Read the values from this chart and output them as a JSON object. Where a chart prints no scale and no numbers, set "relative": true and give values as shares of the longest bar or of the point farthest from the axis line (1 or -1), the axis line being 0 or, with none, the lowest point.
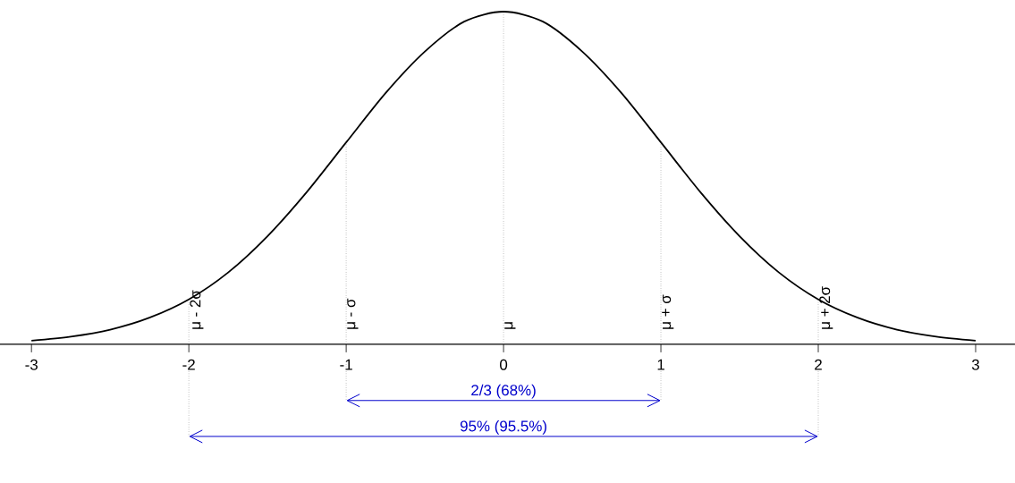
{
  "chart_data": {
    "type": "line",
    "relative": true,
    "color": "#000000",
    "x": [
      -3,
      -2.75,
      -2.5,
      -2.25,
      -2,
      -1.75,
      -1.5,
      -1.25,
      -1,
      -0.75,
      -0.5,
      -0.25,
      0,
      0.25,
      0.5,
      0.75,
      1,
      1.25,
      1.5,
      1.75,
      2,
      2.25,
      2.5,
      2.75,
      3
    ],
    "values": [
      0.011,
      0.023,
      0.044,
      0.08,
      0.135,
      0.216,
      0.325,
      0.458,
      0.607,
      0.755,
      0.88,
      0.97,
      1,
      0.97,
      0.88,
      0.755,
      0.607,
      0.458,
      0.325,
      0.216,
      0.135,
      0.08,
      0.044,
      0.023,
      0.011
    ],
    "xlim": [
      -3.2,
      3.25
    ],
    "xticks": [
      -3,
      -2,
      -1,
      0,
      1,
      2,
      3
    ],
    "ref_lines": [
      {
        "axis": "x",
        "value": -2,
        "label": "μ - 2σ",
        "line_style": "dotted"
      },
      {
        "axis": "x",
        "value": -1,
        "label": "μ - σ",
        "line_style": "dotted"
      },
      {
        "axis": "x",
        "value": 0,
        "label": "μ",
        "line_style": "dotted"
      },
      {
        "axis": "x",
        "value": 1,
        "label": "μ + σ",
        "line_style": "dotted"
      },
      {
        "axis": "x",
        "value": 2,
        "label": "μ + 2σ",
        "line_style": "dotted"
      }
    ],
    "annotations": [
      "2/3 (68%)",
      "95% (95.5%)"
    ]
  }
}
